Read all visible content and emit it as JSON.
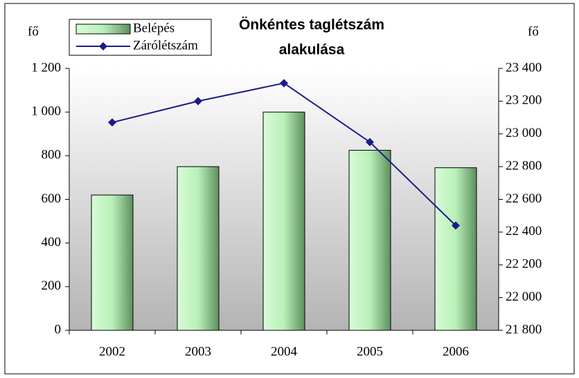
{
  "chart_data": {
    "type": "bar_line",
    "title": [
      "Önkéntes taglétszám",
      "alakulása"
    ],
    "y_label": "fő",
    "y2_label": "fő",
    "categories": [
      "2002",
      "2003",
      "2004",
      "2005",
      "2006"
    ],
    "series": [
      {
        "name": "Belépés",
        "type": "bar",
        "color": "#b8f0b8",
        "values": [
          620,
          750,
          1000,
          825,
          745
        ]
      },
      {
        "name": "Zárólétszám",
        "type": "line",
        "axis": "y2",
        "color": "#1a1a8c",
        "values": [
          23070,
          23200,
          23310,
          22950,
          22440
        ]
      }
    ],
    "ylim": [
      0,
      1200
    ],
    "yticks": [
      0,
      200,
      400,
      600,
      800,
      {
        "value": 1000,
        "label": "1 000"
      },
      {
        "value": 1200,
        "label": "1 200"
      }
    ],
    "y2lim": [
      21800,
      23400
    ],
    "y2ticks": [
      {
        "value": 21800,
        "label": "21 800"
      },
      {
        "value": 22000,
        "label": "22 000"
      },
      {
        "value": 22200,
        "label": "22 200"
      },
      {
        "value": 22400,
        "label": "22 400"
      },
      {
        "value": 22600,
        "label": "22 600"
      },
      {
        "value": 22800,
        "label": "22 800"
      },
      {
        "value": 23000,
        "label": "23 000"
      },
      {
        "value": 23200,
        "label": "23 200"
      },
      {
        "value": 23400,
        "label": "23 400"
      }
    ],
    "legend": "top-left",
    "grid": false
  }
}
